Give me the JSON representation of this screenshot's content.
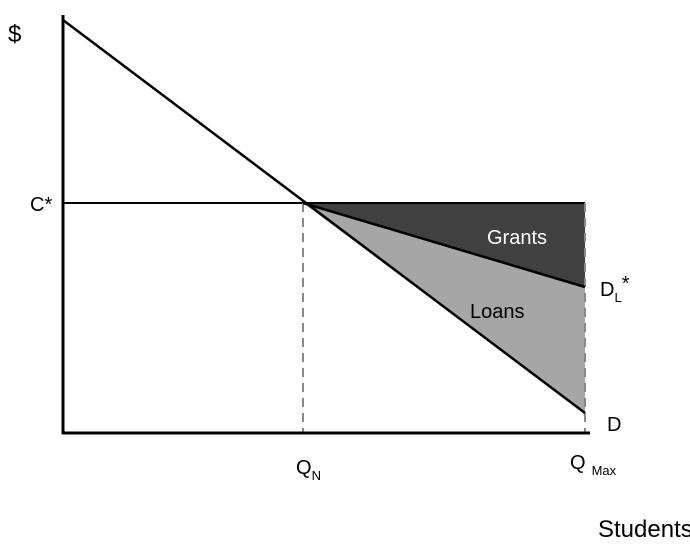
{
  "axes": {
    "y_label": "$",
    "x_label": "Students"
  },
  "labels": {
    "price": "C*",
    "q_n": {
      "main": "Q",
      "sub": "N"
    },
    "q_max": {
      "main": "Q",
      "sub": "Max"
    },
    "d_l": {
      "main": "D",
      "sub": "L",
      "suffix": "*"
    },
    "demand": "D"
  },
  "regions": {
    "grants": "Grants",
    "loans": "Loans"
  }
}
